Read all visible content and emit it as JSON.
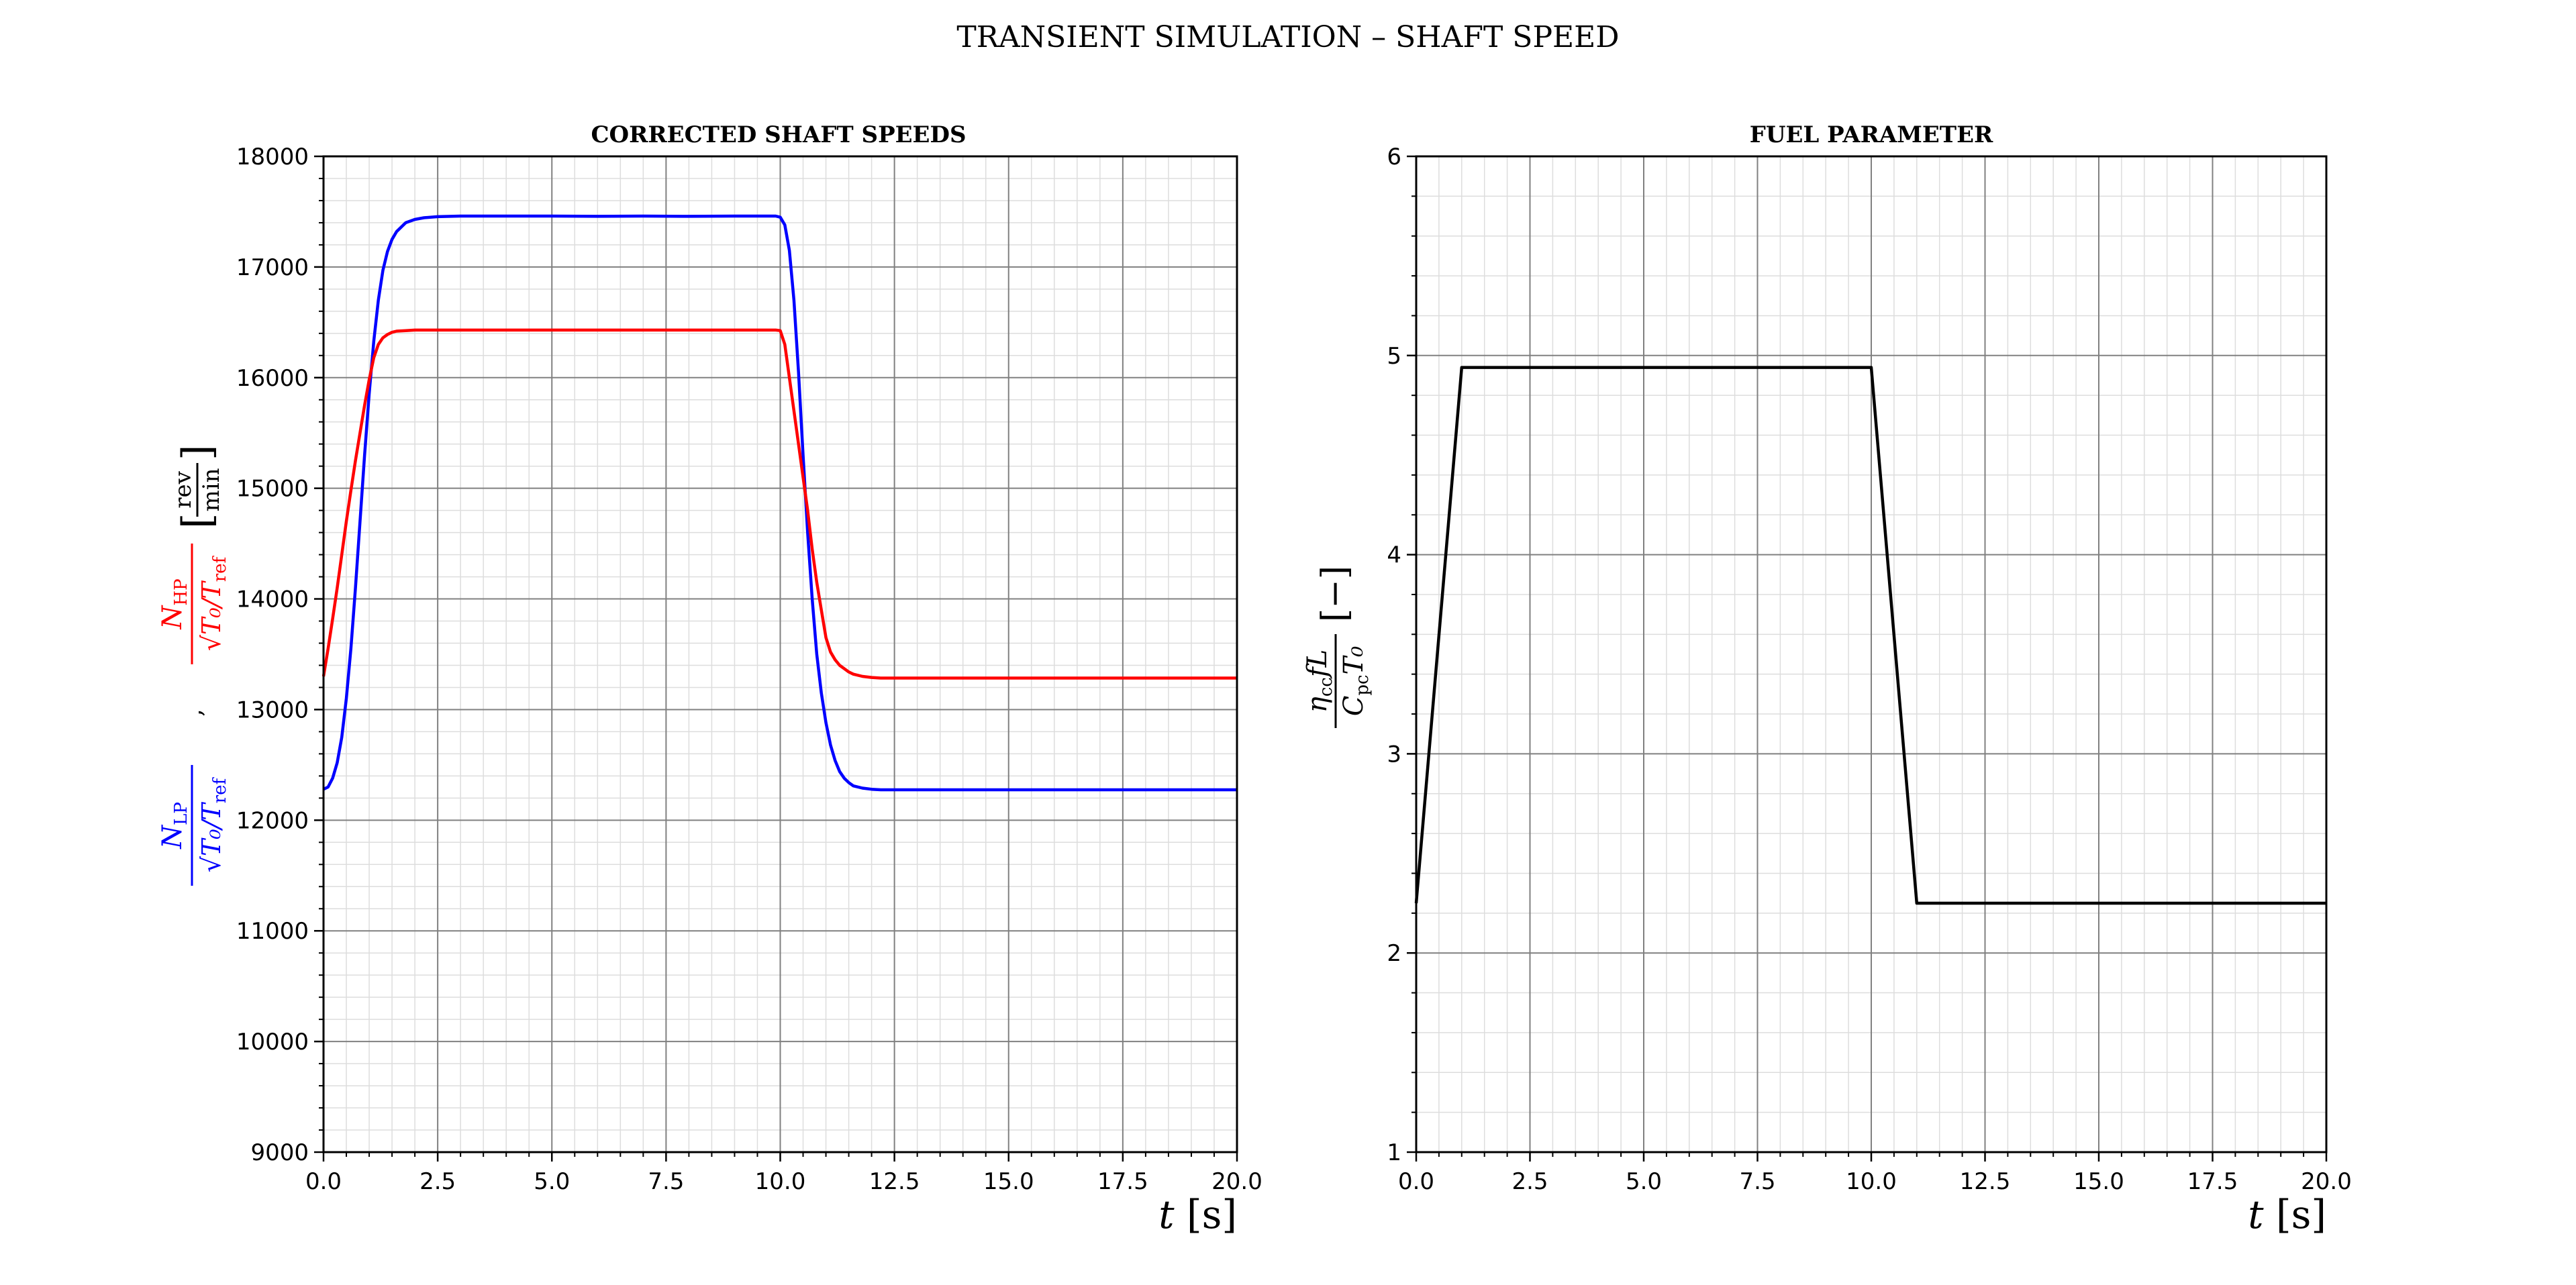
{
  "figure": {
    "title": "TRANSIENT SIMULATION – SHAFT SPEED"
  },
  "colors": {
    "lp": "#0000ff",
    "hp": "#ff0000",
    "fuel": "#000000",
    "grid_major": "#808080",
    "grid_minor": "#dddddd"
  },
  "chart_data": [
    {
      "type": "line",
      "title": "CORRECTED SHAFT SPEEDS",
      "xlabel_var": "t",
      "xlabel_unit": "[s]",
      "ylabel": {
        "hp_num": "N",
        "hp_sub": "HP",
        "lp_num": "N",
        "lp_sub": "LP",
        "den": "√T₀/T",
        "den_sub": "ref",
        "sep": ",",
        "unit_num": "rev",
        "unit_den": "min"
      },
      "xlim": [
        0,
        20
      ],
      "ylim": [
        9000,
        18000
      ],
      "xticks": [
        "0.0",
        "2.5",
        "5.0",
        "7.5",
        "10.0",
        "12.5",
        "15.0",
        "17.5",
        "20.0"
      ],
      "yticks": [
        "9000",
        "10000",
        "11000",
        "12000",
        "13000",
        "14000",
        "15000",
        "16000",
        "17000",
        "18000"
      ],
      "grid": true,
      "series": [
        {
          "key": "lp",
          "x": [
            0,
            0.1,
            0.2,
            0.3,
            0.4,
            0.5,
            0.6,
            0.7,
            0.8,
            0.9,
            1.0,
            1.1,
            1.2,
            1.3,
            1.4,
            1.5,
            1.6,
            1.8,
            2.0,
            2.2,
            2.5,
            3.0,
            4.0,
            5.0,
            6.0,
            7.0,
            8.0,
            9.0,
            9.9,
            10.0,
            10.1,
            10.2,
            10.3,
            10.4,
            10.5,
            10.6,
            10.7,
            10.8,
            10.9,
            11.0,
            11.1,
            11.2,
            11.3,
            11.4,
            11.5,
            11.6,
            11.8,
            12.0,
            12.2,
            12.5,
            13.0,
            14.0,
            15.0,
            16.0,
            17.0,
            18.0,
            19.0,
            20.0
          ],
          "y": [
            12280,
            12300,
            12380,
            12520,
            12750,
            13100,
            13550,
            14100,
            14700,
            15300,
            15850,
            16330,
            16700,
            16970,
            17140,
            17250,
            17320,
            17400,
            17430,
            17445,
            17455,
            17460,
            17460,
            17460,
            17458,
            17460,
            17458,
            17460,
            17460,
            17450,
            17380,
            17150,
            16700,
            16050,
            15300,
            14600,
            14000,
            13500,
            13150,
            12880,
            12680,
            12540,
            12440,
            12380,
            12340,
            12310,
            12290,
            12280,
            12275,
            12275,
            12275,
            12275,
            12275,
            12275,
            12275,
            12275,
            12275,
            12275
          ]
        },
        {
          "key": "hp",
          "x": [
            0,
            0.1,
            0.2,
            0.3,
            0.4,
            0.5,
            0.6,
            0.7,
            0.8,
            0.9,
            1.0,
            1.1,
            1.2,
            1.3,
            1.4,
            1.5,
            1.6,
            1.8,
            2.0,
            2.2,
            2.5,
            3.0,
            4.0,
            5.0,
            6.0,
            7.0,
            8.0,
            9.0,
            9.9,
            10.0,
            10.1,
            10.2,
            10.3,
            10.4,
            10.5,
            10.6,
            10.7,
            10.8,
            10.9,
            11.0,
            11.1,
            11.2,
            11.3,
            11.4,
            11.5,
            11.6,
            11.8,
            12.0,
            12.2,
            12.5,
            13.0,
            14.0,
            15.0,
            16.0,
            17.0,
            18.0,
            19.0,
            20.0
          ],
          "y": [
            13300,
            13550,
            13820,
            14100,
            14400,
            14700,
            14980,
            15250,
            15500,
            15750,
            15980,
            16180,
            16300,
            16360,
            16390,
            16410,
            16420,
            16425,
            16430,
            16430,
            16430,
            16430,
            16430,
            16430,
            16430,
            16430,
            16430,
            16430,
            16430,
            16425,
            16300,
            16000,
            15700,
            15400,
            15100,
            14800,
            14450,
            14150,
            13900,
            13650,
            13520,
            13450,
            13400,
            13370,
            13340,
            13320,
            13300,
            13290,
            13285,
            13285,
            13285,
            13285,
            13285,
            13285,
            13285,
            13285,
            13285,
            13285
          ]
        }
      ]
    },
    {
      "type": "line",
      "title": "FUEL PARAMETER",
      "xlabel_var": "t",
      "xlabel_unit": "[s]",
      "ylabel": {
        "num": "η",
        "num_sub": "cc",
        "num_rest": "fL",
        "den": "C",
        "den_sub": "pc",
        "den_rest": "T₀",
        "unit": "[−]"
      },
      "xlim": [
        0,
        20
      ],
      "ylim": [
        1,
        6
      ],
      "xticks": [
        "0.0",
        "2.5",
        "5.0",
        "7.5",
        "10.0",
        "12.5",
        "15.0",
        "17.5",
        "20.0"
      ],
      "yticks": [
        "1",
        "2",
        "3",
        "4",
        "5",
        "6"
      ],
      "grid": true,
      "series": [
        {
          "key": "fuel",
          "x": [
            0,
            1,
            10,
            11,
            20
          ],
          "y": [
            2.25,
            4.94,
            4.94,
            2.25,
            2.25
          ]
        }
      ]
    }
  ]
}
